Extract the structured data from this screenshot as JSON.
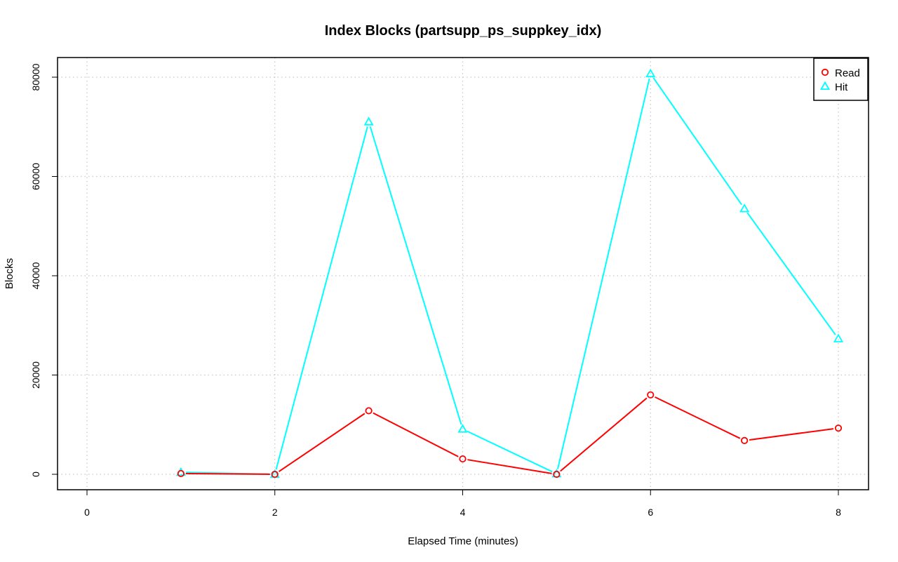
{
  "chart_data": {
    "type": "line",
    "title": "Index Blocks (partsupp_ps_suppkey_idx)",
    "xlabel": "Elapsed Time (minutes)",
    "ylabel": "Blocks",
    "xlim": [
      0,
      8
    ],
    "ylim": [
      0,
      80000
    ],
    "x_ticks": [
      0,
      2,
      4,
      6,
      8
    ],
    "y_ticks": [
      0,
      20000,
      40000,
      60000,
      80000
    ],
    "grid": true,
    "legend_position": "top-right",
    "x": [
      1,
      2,
      3,
      4,
      5,
      6,
      7,
      8
    ],
    "series": [
      {
        "name": "Read",
        "color": "#ff0000",
        "marker": "circle",
        "values": [
          150,
          0,
          12800,
          3100,
          0,
          16000,
          6800,
          9300
        ]
      },
      {
        "name": "Hit",
        "color": "#00ffff",
        "marker": "triangle",
        "values": [
          400,
          0,
          71000,
          9100,
          100,
          80700,
          53500,
          27300
        ]
      }
    ]
  }
}
